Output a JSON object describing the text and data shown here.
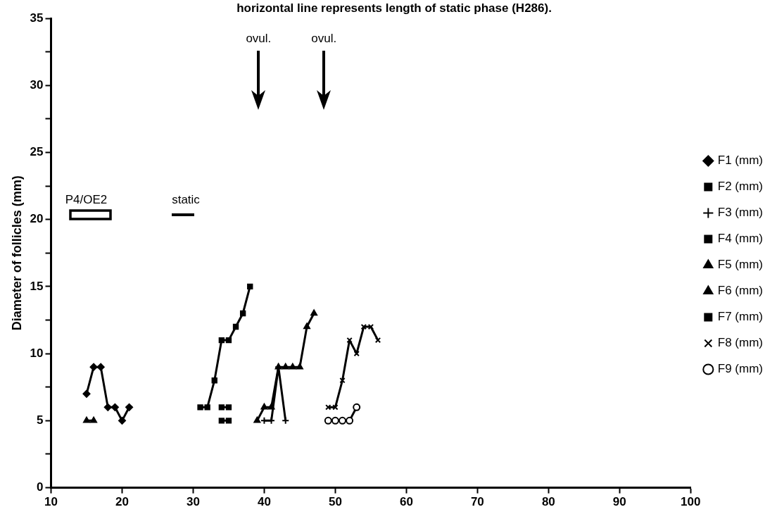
{
  "chart_data": {
    "type": "line",
    "title": "horizontal line represents length of static phase (H286).",
    "ylabel": "Diameter of follicles (mm)",
    "xlim": [
      10,
      100
    ],
    "xticks": [
      10,
      20,
      30,
      40,
      50,
      60,
      70,
      80,
      90,
      100
    ],
    "ylim": [
      0,
      35
    ],
    "yticks": [
      0,
      {
        "value": 2.5,
        "label": null
      },
      5,
      {
        "value": 7.5,
        "label": null
      },
      10,
      {
        "value": 12.5,
        "label": null
      },
      15,
      {
        "value": 17.5,
        "label": null
      },
      20,
      {
        "value": 22.5,
        "label": null
      },
      25,
      {
        "value": 27.5,
        "label": null
      },
      30,
      {
        "value": 32.5,
        "label": null
      },
      35
    ],
    "grid": false,
    "legend": "right",
    "series": [
      {
        "name": "F1 (mm)",
        "color": "#000000",
        "marker": "diamond",
        "x": [
          15,
          16,
          17,
          18,
          19,
          20,
          21
        ],
        "values": [
          7,
          9,
          9,
          6,
          6,
          5,
          6
        ]
      },
      {
        "name": "F2 (mm)",
        "color": "#000000",
        "marker": "square",
        "x": [
          34,
          35
        ],
        "values": [
          5,
          5
        ]
      },
      {
        "name": "F3 (mm)",
        "color": "#000000",
        "marker": "cross",
        "x": [
          40,
          41,
          42,
          43
        ],
        "values": [
          5,
          5,
          9,
          5
        ]
      },
      {
        "name": "F4 (mm)",
        "color": "#000000",
        "marker": "square",
        "x": [
          34,
          35
        ],
        "values": [
          6,
          6
        ]
      },
      {
        "name": "F5 (mm)",
        "color": "#000000",
        "marker": "triangle",
        "x": [
          15,
          16
        ],
        "values": [
          5,
          5
        ]
      },
      {
        "name": "F6 (mm)",
        "color": "#000000",
        "marker": "triangle",
        "x": [
          39,
          40,
          41,
          42,
          43,
          44,
          45,
          46,
          47
        ],
        "values": [
          5,
          6,
          6,
          9,
          9,
          9,
          9,
          12,
          13
        ]
      },
      {
        "name": "F7 (mm)",
        "color": "#000000",
        "marker": "square",
        "x": [
          31,
          32,
          33,
          34,
          35,
          36,
          37,
          38
        ],
        "values": [
          6,
          6,
          8,
          11,
          11,
          12,
          13,
          15
        ]
      },
      {
        "name": "F8 (mm)",
        "color": "#000000",
        "marker": "x",
        "x": [
          49,
          50,
          51,
          52,
          53,
          54,
          55,
          56
        ],
        "values": [
          6,
          6,
          8,
          11,
          10,
          12,
          12,
          11
        ]
      },
      {
        "name": "F9 (mm)",
        "color": "#000000",
        "marker": "circle",
        "x": [
          49,
          50,
          51,
          52,
          53
        ],
        "values": [
          5,
          5,
          5,
          5,
          6
        ]
      }
    ],
    "annotations": [
      "ovul.",
      "ovul.",
      "P4/OE2",
      "static"
    ]
  }
}
